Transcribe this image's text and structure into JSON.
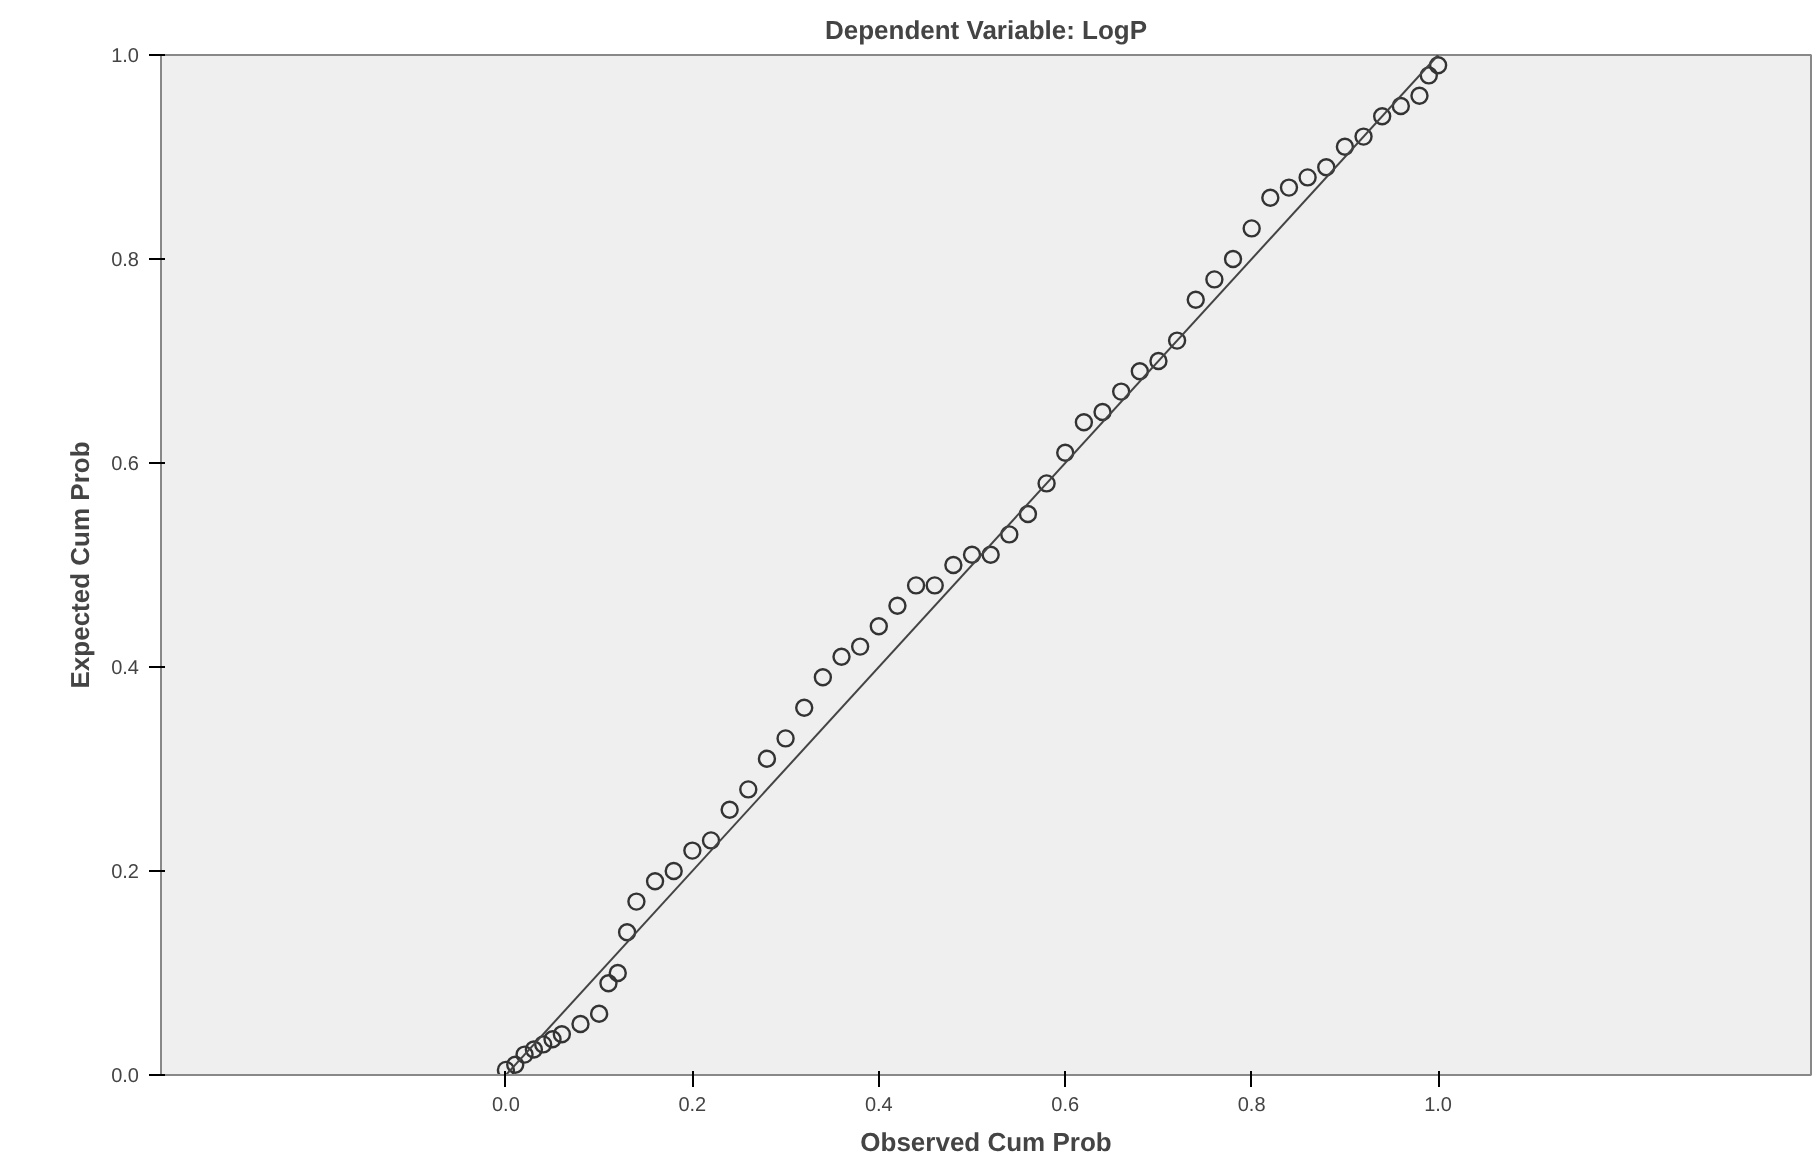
{
  "chart_data": {
    "type": "scatter",
    "title": "Dependent Variable: LogP",
    "xlabel": "Observed Cum Prob",
    "ylabel": "Expected Cum Prob",
    "xlim": [
      -0.37,
      1.4
    ],
    "ylim": [
      0,
      1
    ],
    "xticks": [
      {
        "value": 0,
        "label": "0.0"
      },
      {
        "value": 0.2,
        "label": "0.2"
      },
      {
        "value": 0.4,
        "label": "0.4"
      },
      {
        "value": 0.6,
        "label": "0.6"
      },
      {
        "value": 0.8,
        "label": "0.8"
      },
      {
        "value": 1,
        "label": "1.0"
      }
    ],
    "yticks": [
      {
        "value": 0,
        "label": "0.0"
      },
      {
        "value": 0.2,
        "label": "0.2"
      },
      {
        "value": 0.4,
        "label": "0.4"
      },
      {
        "value": 0.6,
        "label": "0.6"
      },
      {
        "value": 0.8,
        "label": "0.8"
      },
      {
        "value": 1,
        "label": "1.0"
      }
    ],
    "grid": false,
    "series": [
      {
        "marker": "circle",
        "color": "#333333",
        "x": [
          0.0,
          0.01,
          0.02,
          0.03,
          0.04,
          0.05,
          0.06,
          0.08,
          0.1,
          0.11,
          0.12,
          0.13,
          0.14,
          0.16,
          0.18,
          0.2,
          0.22,
          0.24,
          0.26,
          0.28,
          0.3,
          0.32,
          0.34,
          0.36,
          0.38,
          0.4,
          0.42,
          0.44,
          0.46,
          0.48,
          0.5,
          0.52,
          0.54,
          0.56,
          0.58,
          0.6,
          0.62,
          0.64,
          0.66,
          0.68,
          0.7,
          0.72,
          0.74,
          0.76,
          0.78,
          0.8,
          0.82,
          0.84,
          0.86,
          0.88,
          0.9,
          0.92,
          0.94,
          0.96,
          0.98,
          0.99,
          1.0
        ],
        "values": [
          0.005,
          0.01,
          0.02,
          0.025,
          0.03,
          0.035,
          0.04,
          0.05,
          0.06,
          0.09,
          0.1,
          0.14,
          0.17,
          0.19,
          0.2,
          0.22,
          0.23,
          0.26,
          0.28,
          0.31,
          0.33,
          0.36,
          0.39,
          0.41,
          0.42,
          0.44,
          0.46,
          0.48,
          0.48,
          0.5,
          0.51,
          0.51,
          0.53,
          0.55,
          0.58,
          0.61,
          0.64,
          0.65,
          0.67,
          0.69,
          0.7,
          0.72,
          0.76,
          0.78,
          0.8,
          0.83,
          0.86,
          0.87,
          0.88,
          0.89,
          0.91,
          0.92,
          0.94,
          0.95,
          0.96,
          0.98,
          0.99
        ]
      },
      {
        "type": "line",
        "marker": "none",
        "color": "#444444",
        "x": [
          0,
          1
        ],
        "values": [
          0,
          1
        ]
      }
    ]
  }
}
